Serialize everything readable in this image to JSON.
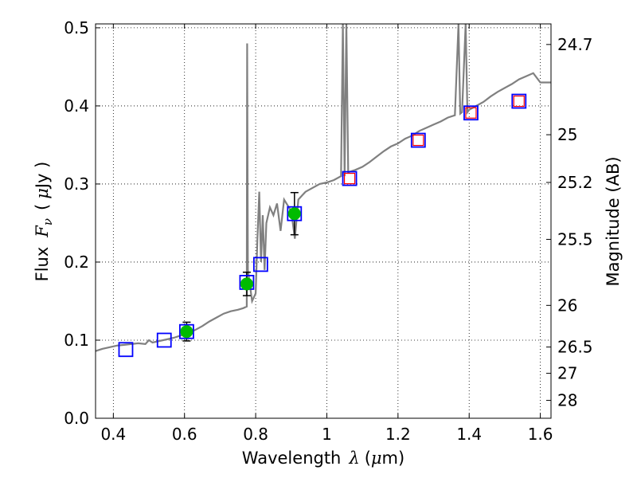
{
  "chart_data": {
    "type": "scatter",
    "xlabel_text": "Wavelength",
    "xlabel_symbol": "λ",
    "xlabel_unit_open": "(",
    "xlabel_unit_mu": "μ",
    "xlabel_unit_rest": "m)",
    "ylabel_text": "Flux",
    "ylabel_symbol": "F",
    "ylabel_subscript": "ν",
    "ylabel_unit_open": "(",
    "ylabel_unit_mu": "μ",
    "ylabel_unit_rest": "Jy )",
    "y2label": "Magnitude (AB)",
    "xlim": [
      0.35,
      1.63
    ],
    "ylim": [
      0.0,
      0.505
    ],
    "grid": true,
    "x_ticks": [
      {
        "value": 0.4,
        "label": "0.4"
      },
      {
        "value": 0.6,
        "label": "0.6"
      },
      {
        "value": 0.8,
        "label": "0.8"
      },
      {
        "value": 1.0,
        "label": "1"
      },
      {
        "value": 1.2,
        "label": "1.2"
      },
      {
        "value": 1.4,
        "label": "1.4"
      },
      {
        "value": 1.6,
        "label": "1.6"
      }
    ],
    "y_ticks": [
      {
        "value": 0.0,
        "label": "0.0"
      },
      {
        "value": 0.1,
        "label": "0.1"
      },
      {
        "value": 0.2,
        "label": "0.2"
      },
      {
        "value": 0.3,
        "label": "0.3"
      },
      {
        "value": 0.4,
        "label": "0.4"
      },
      {
        "value": 0.5,
        "label": "0.5"
      }
    ],
    "y2_ticks": [
      {
        "value": 24.7,
        "label": "24.7"
      },
      {
        "value": 25.0,
        "label": "25"
      },
      {
        "value": 25.2,
        "label": "25.2"
      },
      {
        "value": 25.5,
        "label": "25.5"
      },
      {
        "value": 26.0,
        "label": "26"
      },
      {
        "value": 26.5,
        "label": "26.5"
      },
      {
        "value": 27.0,
        "label": "27"
      },
      {
        "value": 28.0,
        "label": "28"
      }
    ],
    "colors": {
      "template": "#808080",
      "observed": "#00bb00",
      "model_box": "#0000ff",
      "prediction_box": "#ff0000",
      "errorbar": "#000000",
      "grid": "#000000"
    },
    "template_spectrum": [
      [
        0.35,
        0.086
      ],
      [
        0.37,
        0.089
      ],
      [
        0.39,
        0.091
      ],
      [
        0.41,
        0.093
      ],
      [
        0.43,
        0.094
      ],
      [
        0.45,
        0.095
      ],
      [
        0.47,
        0.096
      ],
      [
        0.49,
        0.095
      ],
      [
        0.5,
        0.1
      ],
      [
        0.51,
        0.097
      ],
      [
        0.53,
        0.099
      ],
      [
        0.55,
        0.101
      ],
      [
        0.57,
        0.103
      ],
      [
        0.59,
        0.106
      ],
      [
        0.61,
        0.109
      ],
      [
        0.63,
        0.113
      ],
      [
        0.65,
        0.118
      ],
      [
        0.67,
        0.124
      ],
      [
        0.69,
        0.129
      ],
      [
        0.71,
        0.134
      ],
      [
        0.73,
        0.137
      ],
      [
        0.75,
        0.139
      ],
      [
        0.765,
        0.141
      ],
      [
        0.775,
        0.143
      ],
      [
        0.776,
        0.48
      ],
      [
        0.778,
        0.19
      ],
      [
        0.79,
        0.15
      ],
      [
        0.8,
        0.16
      ],
      [
        0.805,
        0.23
      ],
      [
        0.81,
        0.29
      ],
      [
        0.815,
        0.2
      ],
      [
        0.82,
        0.26
      ],
      [
        0.825,
        0.19
      ],
      [
        0.83,
        0.25
      ],
      [
        0.84,
        0.27
      ],
      [
        0.85,
        0.26
      ],
      [
        0.86,
        0.275
      ],
      [
        0.87,
        0.24
      ],
      [
        0.88,
        0.28
      ],
      [
        0.9,
        0.265
      ],
      [
        0.91,
        0.23
      ],
      [
        0.92,
        0.28
      ],
      [
        0.94,
        0.29
      ],
      [
        0.96,
        0.295
      ],
      [
        0.98,
        0.3
      ],
      [
        1.0,
        0.302
      ],
      [
        1.02,
        0.305
      ],
      [
        1.04,
        0.31
      ],
      [
        1.045,
        0.505
      ],
      [
        1.05,
        0.31
      ],
      [
        1.055,
        0.505
      ],
      [
        1.06,
        0.315
      ],
      [
        1.08,
        0.318
      ],
      [
        1.1,
        0.322
      ],
      [
        1.12,
        0.328
      ],
      [
        1.14,
        0.335
      ],
      [
        1.16,
        0.342
      ],
      [
        1.18,
        0.348
      ],
      [
        1.2,
        0.352
      ],
      [
        1.22,
        0.358
      ],
      [
        1.24,
        0.362
      ],
      [
        1.26,
        0.368
      ],
      [
        1.28,
        0.372
      ],
      [
        1.3,
        0.376
      ],
      [
        1.32,
        0.38
      ],
      [
        1.34,
        0.385
      ],
      [
        1.36,
        0.388
      ],
      [
        1.37,
        0.505
      ],
      [
        1.375,
        0.39
      ],
      [
        1.38,
        0.392
      ],
      [
        1.39,
        0.505
      ],
      [
        1.395,
        0.392
      ],
      [
        1.4,
        0.395
      ],
      [
        1.42,
        0.4
      ],
      [
        1.44,
        0.405
      ],
      [
        1.46,
        0.412
      ],
      [
        1.48,
        0.418
      ],
      [
        1.5,
        0.423
      ],
      [
        1.52,
        0.428
      ],
      [
        1.54,
        0.434
      ],
      [
        1.56,
        0.438
      ],
      [
        1.58,
        0.442
      ],
      [
        1.6,
        0.43
      ],
      [
        1.63,
        0.43
      ]
    ],
    "observed_points": [
      {
        "x": 0.606,
        "y": 0.111,
        "err": 0.012
      },
      {
        "x": 0.775,
        "y": 0.172,
        "err": 0.015
      },
      {
        "x": 0.909,
        "y": 0.262,
        "err": 0.027
      }
    ],
    "model_boxes": [
      {
        "x": 0.435,
        "y": 0.088
      },
      {
        "x": 0.543,
        "y": 0.1
      },
      {
        "x": 0.606,
        "y": 0.111
      },
      {
        "x": 0.775,
        "y": 0.174
      },
      {
        "x": 0.814,
        "y": 0.197
      },
      {
        "x": 0.909,
        "y": 0.262
      },
      {
        "x": 1.064,
        "y": 0.307
      },
      {
        "x": 1.257,
        "y": 0.356
      },
      {
        "x": 1.405,
        "y": 0.391
      },
      {
        "x": 1.54,
        "y": 0.406
      }
    ],
    "prediction_boxes": [
      {
        "x": 1.064,
        "y": 0.307
      },
      {
        "x": 1.257,
        "y": 0.356
      },
      {
        "x": 1.405,
        "y": 0.391
      },
      {
        "x": 1.54,
        "y": 0.406
      }
    ]
  }
}
